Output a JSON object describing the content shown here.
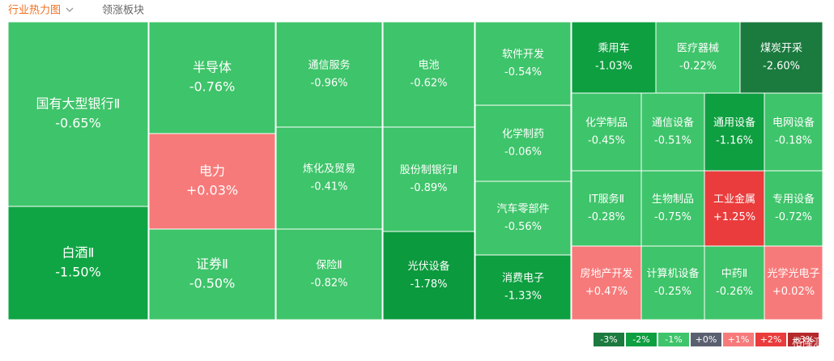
{
  "tabs": [
    "行业热力图",
    "领涨板块"
  ],
  "watermark": "格隆汇",
  "chart_data": {
    "type": "treemap",
    "categories": [
      "国有大型银行Ⅱ",
      "白酒Ⅱ",
      "半导体",
      "电力",
      "证券Ⅱ",
      "通信服务",
      "炼化及贸易",
      "保险Ⅱ",
      "电池",
      "股份制银行Ⅱ",
      "光伏设备",
      "软件开发",
      "化学制药",
      "汽车零部件",
      "消费电子",
      "乘用车",
      "医疗器械",
      "煤炭开采",
      "化学制品",
      "通信设备",
      "通用设备",
      "电网设备",
      "IT服务Ⅱ",
      "生物制品",
      "工业金属",
      "专用设备",
      "房地产开发",
      "计算机设备",
      "中药Ⅱ",
      "光学光电子"
    ],
    "values": [
      -0.65,
      -1.5,
      -0.76,
      0.03,
      -0.5,
      -0.96,
      -0.41,
      -0.82,
      -0.62,
      -0.89,
      -1.78,
      -0.54,
      -0.06,
      -0.56,
      -1.33,
      -1.03,
      -0.22,
      -2.6,
      -0.45,
      -0.51,
      -1.16,
      -0.18,
      -0.28,
      -0.75,
      1.25,
      -0.72,
      0.47,
      -0.25,
      -0.26,
      0.02
    ],
    "value_labels": [
      "-0.65%",
      "-1.50%",
      "-0.76%",
      "+0.03%",
      "-0.50%",
      "-0.96%",
      "-0.41%",
      "-0.82%",
      "-0.62%",
      "-0.89%",
      "-1.78%",
      "-0.54%",
      "-0.06%",
      "-0.56%",
      "-1.33%",
      "-1.03%",
      "-0.22%",
      "-2.60%",
      "-0.45%",
      "-0.51%",
      "-1.16%",
      "-0.18%",
      "-0.28%",
      "-0.75%",
      "+1.25%",
      "-0.72%",
      "+0.47%",
      "-0.25%",
      "-0.26%",
      "+0.02%"
    ],
    "colors": [
      "#3ec46a",
      "#10a544",
      "#3ec46a",
      "#f77a7a",
      "#3ec46a",
      "#3ec46a",
      "#3ec46a",
      "#3ec46a",
      "#3ec46a",
      "#3ec46a",
      "#0b9a3d",
      "#3ec46a",
      "#3ec46a",
      "#3ec46a",
      "#0e9f40",
      "#0e9f40",
      "#3ec46a",
      "#1b7a3e",
      "#3ec46a",
      "#3ec46a",
      "#0e9f40",
      "#3ec46a",
      "#3ec46a",
      "#3ec46a",
      "#ea3c3c",
      "#3ec46a",
      "#f77a7a",
      "#3ec46a",
      "#3ec46a",
      "#f77a7a"
    ],
    "legend": {
      "labels": [
        "-3%",
        "-2%",
        "-1%",
        "+0%",
        "+1%",
        "+2%",
        "+3%"
      ],
      "colors": [
        "#1b7a3e",
        "#0e9f40",
        "#3ec46a",
        "#5b6070",
        "#f77a7a",
        "#ea3c3c",
        "#b5282b"
      ]
    }
  }
}
